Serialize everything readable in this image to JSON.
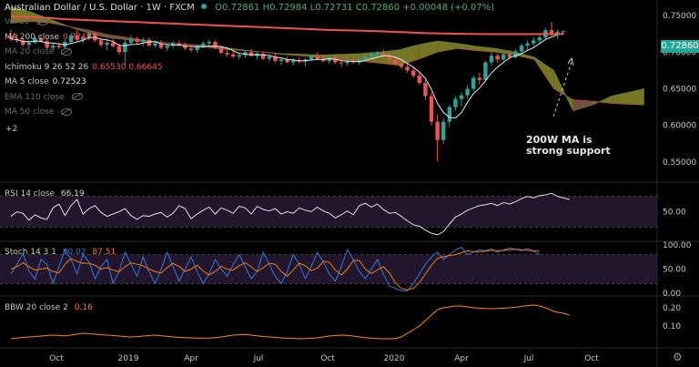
{
  "header": {
    "symbol": "Australian Dollar / U.S. Dollar",
    "interval": "1W",
    "source": "FXCM",
    "ohlc": "O0.72861 H0.72984 L0.72731 C0.72860 +0.00048 (+0.07%)"
  },
  "legend_items": [
    {
      "label": "Vol 20",
      "value": "",
      "hidden": true
    },
    {
      "label": "MA 200 close",
      "value": "0.72481",
      "color": "#ef5350"
    },
    {
      "label": "MA 20 close",
      "value": "",
      "hidden": true
    },
    {
      "label": "Ichimoku 9 26 52 26",
      "value": "0.65530  0.66645",
      "color": "#ef5350"
    },
    {
      "label": "MA 5 close",
      "value": "0.72523",
      "color": "#e0e0e0"
    },
    {
      "label": "EMA 110 close",
      "value": "",
      "hidden": true
    },
    {
      "label": "MA 50 close",
      "value": "",
      "hidden": true
    }
  ],
  "legend_more": "+2",
  "price_badge": "0.72860",
  "annotation": {
    "line1": "200W MA is",
    "line2": "strong support"
  },
  "indicators": {
    "rsi": {
      "label": "RSI 14 close",
      "value": "66.19"
    },
    "stoch": {
      "label": "Stoch 14 3 1",
      "k": "80.02",
      "d": "87.51"
    },
    "bbw": {
      "label": "BBW 20 close 2",
      "value": "0.16"
    }
  },
  "colors": {
    "up": "#26a69a",
    "down": "#ef5350",
    "ma200": "#ef5350",
    "cloud_bear": "#8c5a4c",
    "cloud_bull": "#8a8a2a",
    "rsi_band": "#22152e",
    "bbw": "#ff8c00"
  },
  "icons": {
    "settings": "gear-icon"
  },
  "chart_data": {
    "type": "candlestick",
    "x_ticks": [
      "Oct",
      "2019",
      "Apr",
      "Jul",
      "Oct",
      "2020",
      "Apr",
      "Jul",
      "Oct"
    ],
    "price_axis": {
      "ticks": [
        "0.75000",
        "0.70000",
        "0.65000",
        "0.60000",
        "0.55000"
      ],
      "range": [
        0.525,
        0.765
      ]
    },
    "rsi_axis": {
      "ticks": [
        "50.00"
      ],
      "bands": [
        70,
        30
      ]
    },
    "stoch_axis": {
      "ticks": [
        "100.00",
        "50.00",
        "0.00"
      ],
      "bands": [
        80,
        20
      ]
    },
    "bbw_axis": {
      "ticks": [
        "0.20",
        "0.10"
      ]
    },
    "candles_ohlc": [
      [
        0.722,
        0.731,
        0.715,
        0.718
      ],
      [
        0.718,
        0.725,
        0.713,
        0.716
      ],
      [
        0.716,
        0.719,
        0.708,
        0.71
      ],
      [
        0.71,
        0.716,
        0.706,
        0.713
      ],
      [
        0.713,
        0.722,
        0.711,
        0.719
      ],
      [
        0.719,
        0.723,
        0.713,
        0.715
      ],
      [
        0.715,
        0.718,
        0.703,
        0.706
      ],
      [
        0.706,
        0.712,
        0.702,
        0.709
      ],
      [
        0.709,
        0.713,
        0.704,
        0.707
      ],
      [
        0.707,
        0.717,
        0.705,
        0.714
      ],
      [
        0.714,
        0.726,
        0.712,
        0.723
      ],
      [
        0.723,
        0.73,
        0.715,
        0.717
      ],
      [
        0.717,
        0.723,
        0.712,
        0.72
      ],
      [
        0.72,
        0.728,
        0.716,
        0.725
      ],
      [
        0.725,
        0.727,
        0.714,
        0.716
      ],
      [
        0.716,
        0.72,
        0.707,
        0.71
      ],
      [
        0.71,
        0.716,
        0.703,
        0.713
      ],
      [
        0.713,
        0.718,
        0.706,
        0.708
      ],
      [
        0.708,
        0.712,
        0.697,
        0.7
      ],
      [
        0.7,
        0.718,
        0.682,
        0.713
      ],
      [
        0.713,
        0.723,
        0.71,
        0.718
      ],
      [
        0.718,
        0.721,
        0.711,
        0.714
      ],
      [
        0.714,
        0.72,
        0.708,
        0.717
      ],
      [
        0.717,
        0.72,
        0.707,
        0.709
      ],
      [
        0.709,
        0.716,
        0.706,
        0.712
      ],
      [
        0.712,
        0.716,
        0.704,
        0.706
      ],
      [
        0.706,
        0.711,
        0.701,
        0.709
      ],
      [
        0.709,
        0.715,
        0.705,
        0.712
      ],
      [
        0.712,
        0.716,
        0.707,
        0.71
      ],
      [
        0.71,
        0.713,
        0.703,
        0.705
      ],
      [
        0.705,
        0.709,
        0.7,
        0.703
      ],
      [
        0.703,
        0.71,
        0.699,
        0.707
      ],
      [
        0.707,
        0.715,
        0.705,
        0.712
      ],
      [
        0.712,
        0.717,
        0.709,
        0.714
      ],
      [
        0.714,
        0.716,
        0.704,
        0.706
      ],
      [
        0.706,
        0.709,
        0.697,
        0.699
      ],
      [
        0.699,
        0.703,
        0.694,
        0.697
      ],
      [
        0.697,
        0.702,
        0.692,
        0.694
      ],
      [
        0.694,
        0.699,
        0.69,
        0.696
      ],
      [
        0.696,
        0.703,
        0.692,
        0.7
      ],
      [
        0.7,
        0.704,
        0.694,
        0.695
      ],
      [
        0.695,
        0.7,
        0.69,
        0.698
      ],
      [
        0.698,
        0.701,
        0.689,
        0.691
      ],
      [
        0.691,
        0.697,
        0.687,
        0.694
      ],
      [
        0.694,
        0.698,
        0.686,
        0.688
      ],
      [
        0.688,
        0.693,
        0.683,
        0.69
      ],
      [
        0.69,
        0.694,
        0.685,
        0.686
      ],
      [
        0.686,
        0.692,
        0.682,
        0.689
      ],
      [
        0.689,
        0.693,
        0.685,
        0.687
      ],
      [
        0.687,
        0.692,
        0.681,
        0.69
      ],
      [
        0.69,
        0.697,
        0.688,
        0.694
      ],
      [
        0.694,
        0.699,
        0.689,
        0.691
      ],
      [
        0.691,
        0.696,
        0.686,
        0.688
      ],
      [
        0.688,
        0.694,
        0.684,
        0.692
      ],
      [
        0.692,
        0.695,
        0.684,
        0.686
      ],
      [
        0.686,
        0.69,
        0.68,
        0.685
      ],
      [
        0.685,
        0.69,
        0.681,
        0.688
      ],
      [
        0.688,
        0.693,
        0.684,
        0.686
      ],
      [
        0.686,
        0.692,
        0.683,
        0.69
      ],
      [
        0.69,
        0.697,
        0.687,
        0.694
      ],
      [
        0.694,
        0.7,
        0.69,
        0.697
      ],
      [
        0.697,
        0.702,
        0.692,
        0.699
      ],
      [
        0.699,
        0.704,
        0.693,
        0.695
      ],
      [
        0.695,
        0.7,
        0.688,
        0.69
      ],
      [
        0.69,
        0.694,
        0.682,
        0.684
      ],
      [
        0.684,
        0.69,
        0.677,
        0.68
      ],
      [
        0.68,
        0.685,
        0.672,
        0.675
      ],
      [
        0.675,
        0.679,
        0.665,
        0.668
      ],
      [
        0.668,
        0.673,
        0.655,
        0.658
      ],
      [
        0.658,
        0.662,
        0.635,
        0.64
      ],
      [
        0.64,
        0.645,
        0.6,
        0.605
      ],
      [
        0.605,
        0.615,
        0.551,
        0.58
      ],
      [
        0.58,
        0.61,
        0.575,
        0.605
      ],
      [
        0.605,
        0.628,
        0.598,
        0.625
      ],
      [
        0.625,
        0.64,
        0.62,
        0.636
      ],
      [
        0.636,
        0.645,
        0.626,
        0.641
      ],
      [
        0.641,
        0.655,
        0.636,
        0.65
      ],
      [
        0.65,
        0.668,
        0.646,
        0.665
      ],
      [
        0.665,
        0.672,
        0.656,
        0.662
      ],
      [
        0.662,
        0.688,
        0.66,
        0.686
      ],
      [
        0.686,
        0.7,
        0.681,
        0.695
      ],
      [
        0.695,
        0.698,
        0.686,
        0.69
      ],
      [
        0.69,
        0.699,
        0.688,
        0.697
      ],
      [
        0.697,
        0.703,
        0.69,
        0.693
      ],
      [
        0.693,
        0.704,
        0.691,
        0.701
      ],
      [
        0.701,
        0.712,
        0.698,
        0.709
      ],
      [
        0.709,
        0.716,
        0.703,
        0.712
      ],
      [
        0.712,
        0.72,
        0.708,
        0.716
      ],
      [
        0.716,
        0.723,
        0.712,
        0.72
      ],
      [
        0.72,
        0.733,
        0.716,
        0.73
      ],
      [
        0.73,
        0.741,
        0.722,
        0.725
      ],
      [
        0.725,
        0.731,
        0.718,
        0.728
      ],
      [
        0.728,
        0.73,
        0.727,
        0.7286
      ]
    ],
    "ma200": [
      0.749,
      0.748,
      0.747,
      0.745,
      0.744,
      0.743,
      0.742,
      0.741,
      0.74,
      0.739,
      0.738,
      0.737,
      0.736,
      0.735,
      0.734,
      0.733,
      0.732,
      0.731,
      0.73,
      0.7295,
      0.729,
      0.728,
      0.727,
      0.726,
      0.7255,
      0.725,
      0.7247,
      0.7246,
      0.7246,
      0.7248
    ],
    "ma200_x": [
      0,
      3,
      6,
      9,
      12,
      15,
      18,
      21,
      24,
      27,
      30,
      33,
      36,
      39,
      42,
      45,
      48,
      51,
      54,
      57,
      60,
      63,
      66,
      69,
      72,
      75,
      78,
      81,
      84,
      92
    ],
    "cloud_a": [
      0.762,
      0.755,
      0.745,
      0.735,
      0.726,
      0.72,
      0.717,
      0.715,
      0.713,
      0.711,
      0.709,
      0.706,
      0.703,
      0.7,
      0.698,
      0.697,
      0.696,
      0.697,
      0.698,
      0.7,
      0.703,
      0.71,
      0.715,
      0.712,
      0.708,
      0.705,
      0.7,
      0.693,
      0.675,
      0.62,
      0.628,
      0.64,
      0.65
    ],
    "cloud_b": [
      0.74,
      0.742,
      0.74,
      0.735,
      0.73,
      0.724,
      0.72,
      0.716,
      0.713,
      0.711,
      0.707,
      0.704,
      0.702,
      0.7,
      0.697,
      0.695,
      0.692,
      0.69,
      0.688,
      0.685,
      0.682,
      0.69,
      0.7,
      0.705,
      0.702,
      0.7,
      0.696,
      0.69,
      0.65,
      0.635,
      0.633,
      0.63,
      0.628
    ],
    "cloud_x": [
      0,
      6,
      12,
      18,
      24,
      30,
      36,
      42,
      48,
      54,
      60,
      66,
      72,
      78,
      84,
      90,
      96,
      102,
      108,
      114,
      120,
      126,
      132,
      138,
      144,
      150,
      156,
      162,
      168,
      174,
      180,
      186,
      196
    ],
    "rsi": [
      44,
      50,
      48,
      39,
      46,
      42,
      40,
      55,
      60,
      45,
      58,
      66,
      47,
      54,
      58,
      49,
      44,
      47,
      50,
      54,
      45,
      40,
      45,
      44,
      47,
      49,
      43,
      48,
      58,
      54,
      41,
      47,
      52,
      56,
      47,
      55,
      52,
      48,
      57,
      55,
      47,
      57,
      53,
      51,
      54,
      47,
      50,
      48,
      55,
      52,
      50,
      56,
      51,
      48,
      42,
      46,
      51,
      46,
      58,
      61,
      56,
      60,
      53,
      48,
      49,
      44,
      38,
      33,
      31,
      26,
      22,
      20,
      24,
      34,
      43,
      47,
      52,
      55,
      58,
      59,
      61,
      58,
      62,
      60,
      63,
      67,
      70,
      68,
      71,
      72,
      74,
      70,
      68,
      66
    ],
    "stoch_k": [
      40,
      60,
      82,
      46,
      29,
      70,
      60,
      20,
      55,
      90,
      70,
      40,
      80,
      65,
      30,
      55,
      70,
      20,
      45,
      85,
      60,
      35,
      75,
      45,
      20,
      50,
      85,
      55,
      25,
      50,
      75,
      45,
      20,
      40,
      70,
      50,
      35,
      60,
      80,
      55,
      30,
      45,
      85,
      60,
      35,
      20,
      45,
      80,
      60,
      30,
      55,
      85,
      65,
      40,
      25,
      55,
      90,
      70,
      45,
      30,
      50,
      70,
      40,
      15,
      10,
      5,
      5,
      20,
      40,
      60,
      75,
      85,
      70,
      80,
      90,
      95,
      80,
      85,
      90,
      88,
      92,
      85,
      90,
      94,
      91,
      88,
      93,
      87,
      80
    ],
    "stoch_d": [
      50,
      55,
      63,
      55,
      48,
      50,
      52,
      45,
      42,
      60,
      72,
      66,
      62,
      62,
      58,
      50,
      53,
      48,
      45,
      55,
      63,
      60,
      57,
      50,
      45,
      42,
      53,
      62,
      55,
      45,
      50,
      58,
      46,
      38,
      45,
      56,
      50,
      48,
      57,
      63,
      55,
      45,
      53,
      62,
      60,
      45,
      35,
      48,
      62,
      57,
      47,
      52,
      66,
      64,
      48,
      38,
      50,
      68,
      68,
      50,
      41,
      48,
      55,
      42,
      22,
      10,
      7,
      10,
      22,
      40,
      58,
      72,
      76,
      78,
      80,
      84,
      88,
      86,
      86,
      87,
      89,
      88,
      89,
      90,
      91,
      90,
      89,
      88,
      87
    ],
    "bbw": [
      0.03,
      0.034,
      0.038,
      0.04,
      0.042,
      0.045,
      0.048,
      0.05,
      0.048,
      0.046,
      0.05,
      0.055,
      0.06,
      0.058,
      0.055,
      0.052,
      0.05,
      0.048,
      0.045,
      0.042,
      0.04,
      0.042,
      0.045,
      0.048,
      0.05,
      0.046,
      0.044,
      0.04,
      0.038,
      0.036,
      0.035,
      0.034,
      0.033,
      0.034,
      0.036,
      0.04,
      0.045,
      0.05,
      0.052,
      0.053,
      0.05,
      0.046,
      0.042,
      0.04,
      0.038,
      0.035,
      0.033,
      0.032,
      0.03,
      0.031,
      0.033,
      0.035,
      0.04,
      0.045,
      0.048,
      0.05,
      0.048,
      0.045,
      0.04,
      0.036,
      0.033,
      0.031,
      0.03,
      0.03,
      0.032,
      0.04,
      0.06,
      0.08,
      0.1,
      0.13,
      0.16,
      0.19,
      0.2,
      0.205,
      0.21,
      0.21,
      0.205,
      0.2,
      0.198,
      0.196,
      0.195,
      0.196,
      0.198,
      0.2,
      0.203,
      0.208,
      0.212,
      0.215,
      0.21,
      0.2,
      0.185,
      0.175,
      0.17,
      0.16
    ]
  }
}
